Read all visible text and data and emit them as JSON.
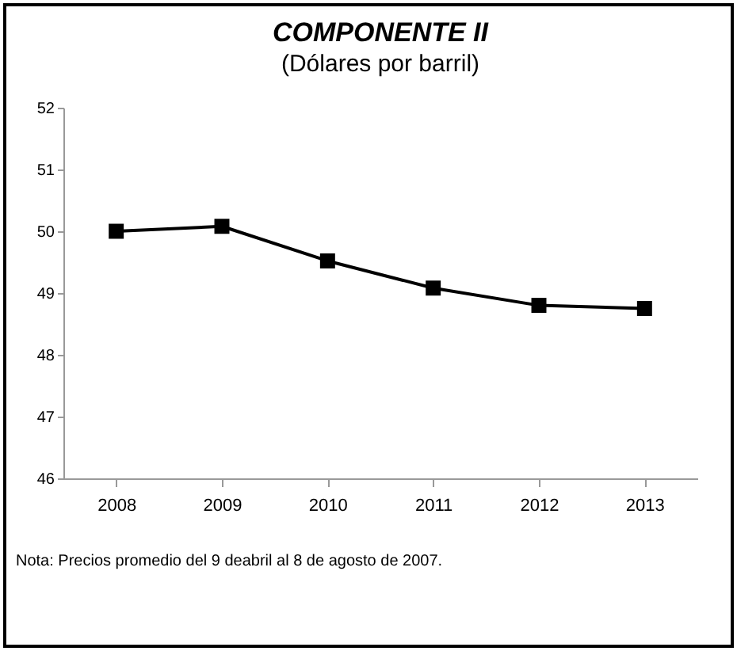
{
  "chart_data": {
    "type": "line",
    "title": "COMPONENTE II",
    "subtitle": "(Dólares por barril)",
    "categories": [
      "2008",
      "2009",
      "2010",
      "2011",
      "2012",
      "2013"
    ],
    "series": [
      {
        "color": "#000000",
        "values": [
          50.0,
          50.08,
          49.52,
          49.08,
          48.8,
          48.75
        ]
      }
    ],
    "ylim": [
      46,
      52
    ],
    "yticks": [
      46,
      47,
      48,
      49,
      50,
      51,
      52
    ],
    "grid": false,
    "legend": false,
    "marker": "square",
    "line_style": "solid",
    "annotations": [
      "Nota: Precios promedio del 9 deabril al 8 de agosto de 2007."
    ]
  }
}
